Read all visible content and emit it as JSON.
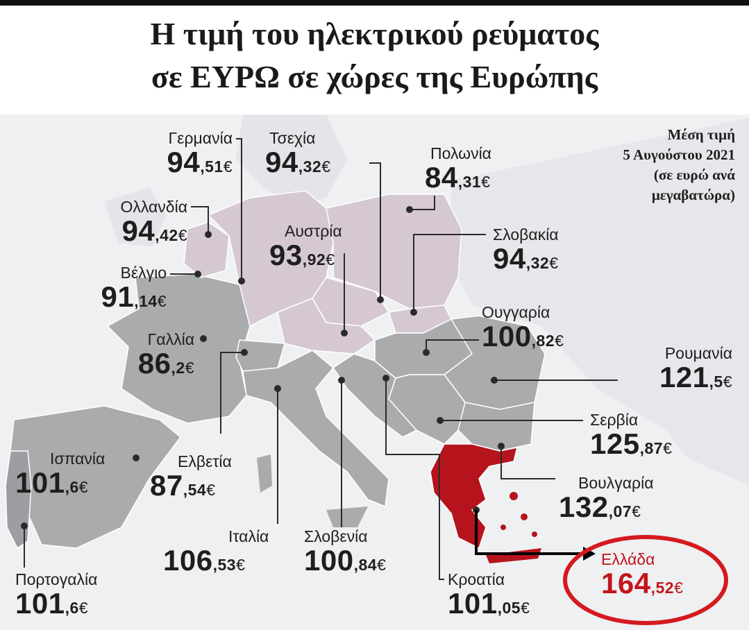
{
  "title": {
    "line1": "Η τιμή του ηλεκτρικού ρεύματος",
    "line2": "σε ΕΥΡΩ σε χώρες της Ευρώπης"
  },
  "note": {
    "line1": "Μέση τιμή",
    "line2": "5 Αυγούστου 2021",
    "line3": "(σε ευρώ ανά",
    "line4": "μεγαβατώρα)"
  },
  "colors": {
    "central_region": "#d6c8d2",
    "other_region": "#a9abad",
    "sea": "#eef0f2",
    "greece": "#b5141c",
    "highlight_ring": "#d41a1f"
  },
  "countries": [
    {
      "id": "germany",
      "name": "Γερμανία",
      "int": "94",
      "dec": ",51",
      "cur": "€"
    },
    {
      "id": "czechia",
      "name": "Τσεχία",
      "int": "94",
      "dec": ",32",
      "cur": "€"
    },
    {
      "id": "poland",
      "name": "Πολωνία",
      "int": "84",
      "dec": ",31",
      "cur": "€"
    },
    {
      "id": "netherlands",
      "name": "Ολλανδία",
      "int": "94",
      "dec": ",42",
      "cur": "€"
    },
    {
      "id": "austria",
      "name": "Αυστρία",
      "int": "93",
      "dec": ",92",
      "cur": "€"
    },
    {
      "id": "slovakia",
      "name": "Σλοβακία",
      "int": "94",
      "dec": ",32",
      "cur": "€"
    },
    {
      "id": "belgium",
      "name": "Βέλγιο",
      "int": "91",
      "dec": ",14",
      "cur": "€"
    },
    {
      "id": "hungary",
      "name": "Ουγγαρία",
      "int": "100",
      "dec": ",82",
      "cur": "€"
    },
    {
      "id": "france",
      "name": "Γαλλία",
      "int": "86",
      "dec": ",2",
      "cur": "€"
    },
    {
      "id": "romania",
      "name": "Ρουμανία",
      "int": "121",
      "dec": ",5",
      "cur": "€"
    },
    {
      "id": "serbia",
      "name": "Σερβία",
      "int": "125",
      "dec": ",87",
      "cur": "€"
    },
    {
      "id": "spain",
      "name": "Ισπανία",
      "int": "101",
      "dec": ",6",
      "cur": "€"
    },
    {
      "id": "switzerland",
      "name": "Ελβετία",
      "int": "87",
      "dec": ",54",
      "cur": "€"
    },
    {
      "id": "bulgaria",
      "name": "Βουλγαρία",
      "int": "132",
      "dec": ",07",
      "cur": "€"
    },
    {
      "id": "italy",
      "name": "Ιταλία",
      "int": "106",
      "dec": ",53",
      "cur": "€"
    },
    {
      "id": "slovenia",
      "name": "Σλοβενία",
      "int": "100",
      "dec": ",84",
      "cur": "€"
    },
    {
      "id": "greece",
      "name": "Ελλάδα",
      "int": "164",
      "dec": ",52",
      "cur": "€"
    },
    {
      "id": "portugal",
      "name": "Πορτογαλία",
      "int": "101",
      "dec": ",6",
      "cur": "€"
    },
    {
      "id": "croatia",
      "name": "Κροατία",
      "int": "101",
      "dec": ",05",
      "cur": "€"
    }
  ]
}
